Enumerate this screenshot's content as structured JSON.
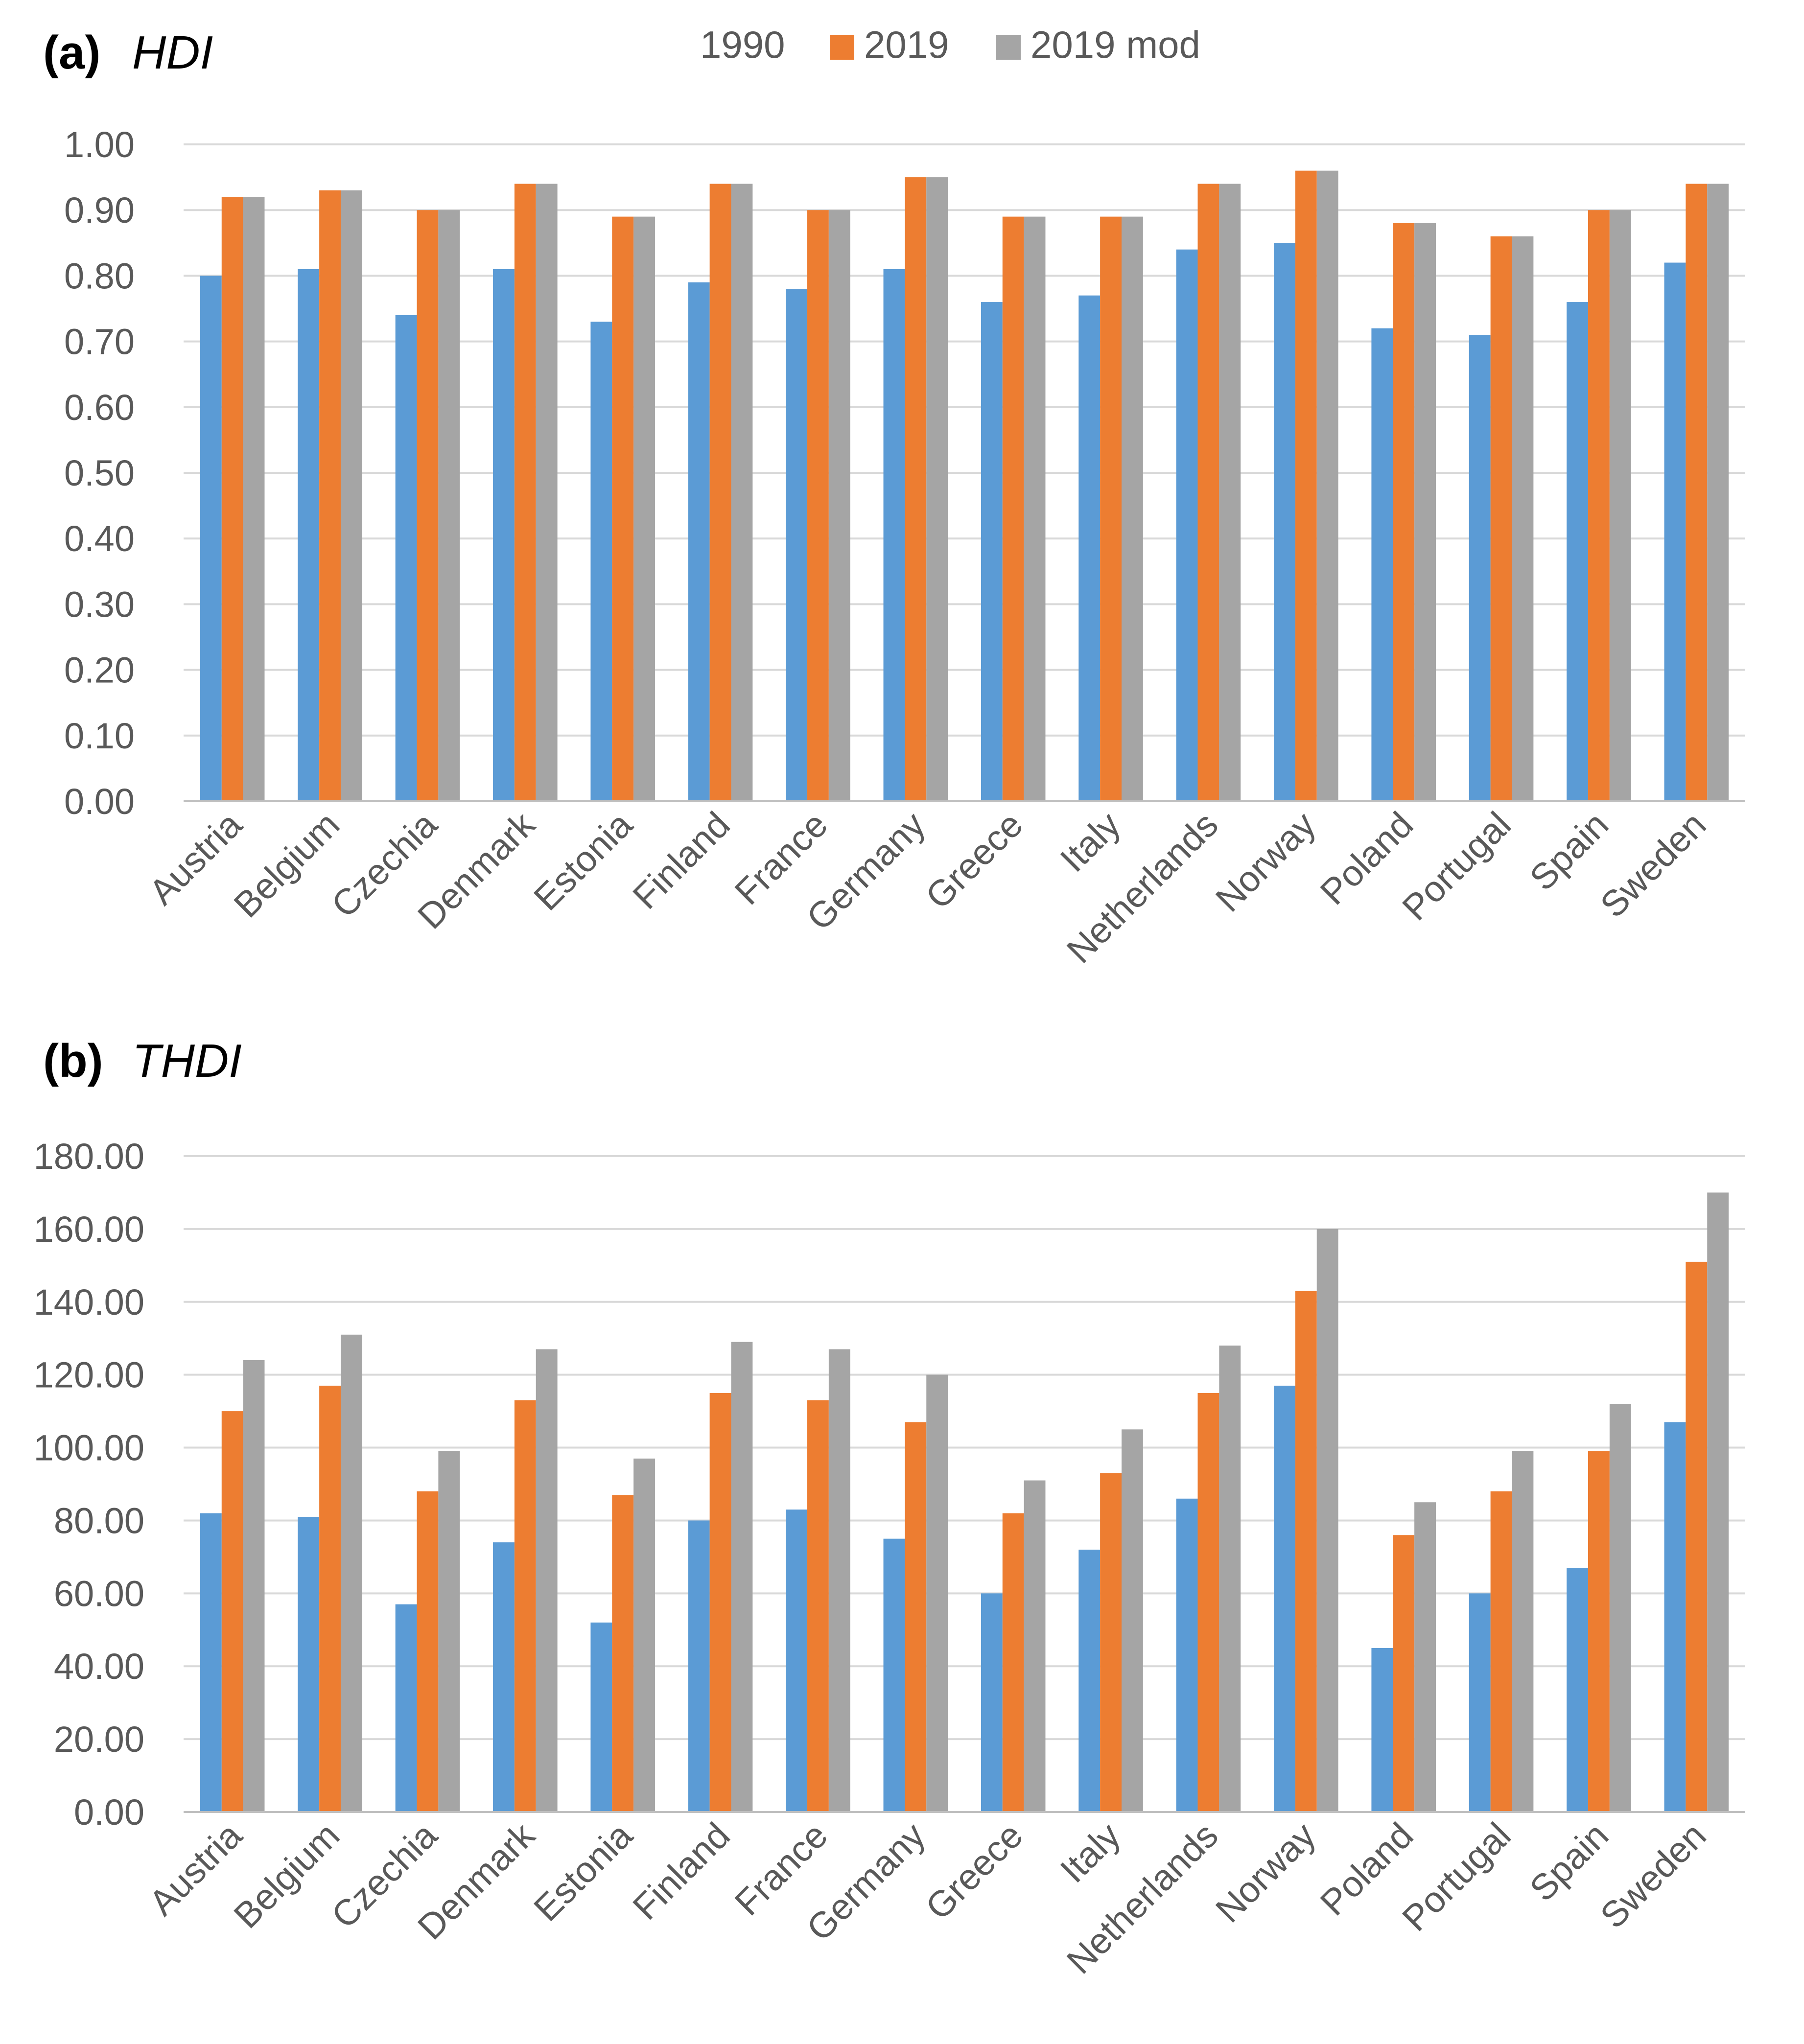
{
  "legend": {
    "items": [
      {
        "label": "1990",
        "color": "#5b9bd5"
      },
      {
        "label": "2019",
        "color": "#ed7d31"
      },
      {
        "label": "2019 mod",
        "color": "#a5a5a5"
      }
    ]
  },
  "chart_data": [
    {
      "type": "bar",
      "panel_letter": "(a)",
      "title": "HDI",
      "xlabel": "",
      "ylabel": "",
      "ylim": [
        0,
        1
      ],
      "yticks": [
        "0.00",
        "0.10",
        "0.20",
        "0.30",
        "0.40",
        "0.50",
        "0.60",
        "0.70",
        "0.80",
        "0.90",
        "1.00"
      ],
      "grid": true,
      "legend_position": "top-center",
      "categories": [
        "Austria",
        "Belgium",
        "Czechia",
        "Denmark",
        "Estonia",
        "Finland",
        "France",
        "Germany",
        "Greece",
        "Italy",
        "Netherlands",
        "Norway",
        "Poland",
        "Portugal",
        "Spain",
        "Sweden"
      ],
      "series": [
        {
          "name": "1990",
          "values": [
            0.8,
            0.81,
            0.74,
            0.81,
            0.73,
            0.79,
            0.78,
            0.81,
            0.76,
            0.77,
            0.84,
            0.85,
            0.72,
            0.71,
            0.76,
            0.82
          ]
        },
        {
          "name": "2019",
          "values": [
            0.92,
            0.93,
            0.9,
            0.94,
            0.89,
            0.94,
            0.9,
            0.95,
            0.89,
            0.89,
            0.94,
            0.96,
            0.88,
            0.86,
            0.9,
            0.94
          ]
        },
        {
          "name": "2019 mod",
          "values": [
            0.92,
            0.93,
            0.9,
            0.94,
            0.89,
            0.94,
            0.9,
            0.95,
            0.89,
            0.89,
            0.94,
            0.96,
            0.88,
            0.86,
            0.9,
            0.94
          ]
        }
      ]
    },
    {
      "type": "bar",
      "panel_letter": "(b)",
      "title": "THDI",
      "xlabel": "",
      "ylabel": "",
      "ylim": [
        0,
        180
      ],
      "yticks": [
        "0.00",
        "20.00",
        "40.00",
        "60.00",
        "80.00",
        "100.00",
        "120.00",
        "140.00",
        "160.00",
        "180.00"
      ],
      "grid": true,
      "legend_position": "none",
      "categories": [
        "Austria",
        "Belgium",
        "Czechia",
        "Denmark",
        "Estonia",
        "Finland",
        "France",
        "Germany",
        "Greece",
        "Italy",
        "Netherlands",
        "Norway",
        "Poland",
        "Portugal",
        "Spain",
        "Sweden"
      ],
      "series": [
        {
          "name": "1990",
          "values": [
            82,
            81,
            57,
            74,
            52,
            80,
            83,
            75,
            60,
            72,
            86,
            117,
            45,
            60,
            67,
            107
          ]
        },
        {
          "name": "2019",
          "values": [
            110,
            117,
            88,
            113,
            87,
            115,
            113,
            107,
            82,
            93,
            115,
            143,
            76,
            88,
            99,
            151
          ]
        },
        {
          "name": "2019 mod",
          "values": [
            124,
            131,
            99,
            127,
            97,
            129,
            127,
            120,
            91,
            105,
            128,
            160,
            85,
            99,
            112,
            170
          ]
        }
      ]
    }
  ]
}
